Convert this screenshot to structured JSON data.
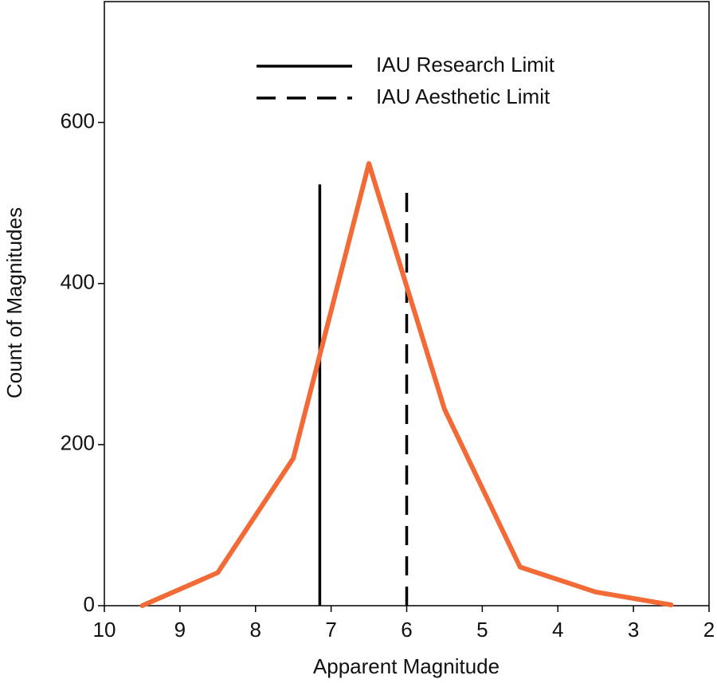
{
  "chart_data": {
    "type": "line",
    "x_label": "Apparent Magnitude",
    "y_label": "Count of Magnitudes",
    "x": [
      9.5,
      8.5,
      7.5,
      6.5,
      5.5,
      4.5,
      3.5,
      2.5
    ],
    "series": [
      {
        "color": "#f26a35",
        "values": [
          0,
          41,
          183,
          549,
          244,
          48,
          17,
          1
        ]
      }
    ],
    "reference_lines": [
      {
        "name": "IAU Research Limit",
        "x": 7.15,
        "ymax": 523,
        "style": "solid",
        "color": "#000000"
      },
      {
        "name": "IAU Aesthetic Limit",
        "x": 6,
        "ymax": 523,
        "style": "dashed",
        "color": "#000000"
      }
    ],
    "xlim": [
      10,
      2
    ],
    "xticks": [
      10,
      9,
      8,
      7,
      6,
      5,
      4,
      3,
      2
    ],
    "ylim": [
      0,
      750
    ],
    "yticks": [
      0,
      200,
      400,
      600
    ],
    "grid": false,
    "legend": "upper center"
  }
}
